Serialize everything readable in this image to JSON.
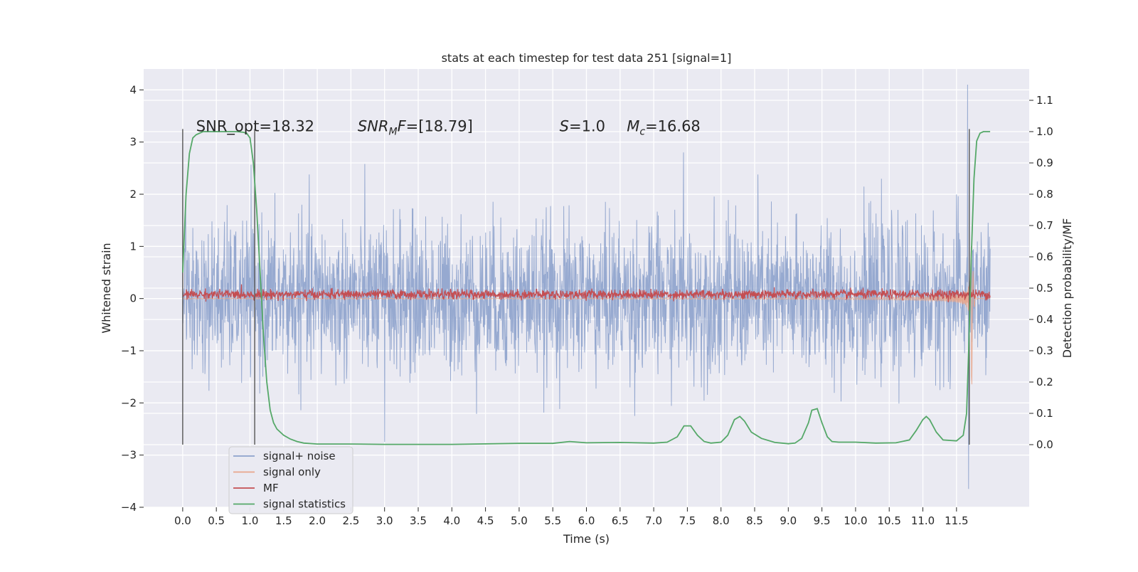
{
  "chart_data": {
    "type": "line",
    "title": "stats at each timestep for test data 251 [signal=1]",
    "xlabel": "Time (s)",
    "ylabel": "Whitened strain",
    "ylabel_right": "Detection probability/MF",
    "xlim": [
      -0.58,
      12.58
    ],
    "ylim": [
      -4.0,
      4.4
    ],
    "ylim_right": [
      -0.2,
      1.2
    ],
    "x_ticks": [
      0.0,
      0.5,
      1.0,
      1.5,
      2.0,
      2.5,
      3.0,
      3.5,
      4.0,
      4.5,
      5.0,
      5.5,
      6.0,
      6.5,
      7.0,
      7.5,
      8.0,
      8.5,
      9.0,
      9.5,
      10.0,
      10.5,
      11.0,
      11.5
    ],
    "x_tick_labels": [
      "0.0",
      "0.5",
      "1.0",
      "1.5",
      "2.0",
      "2.5",
      "3.0",
      "3.5",
      "4.0",
      "4.5",
      "5.0",
      "5.5",
      "6.0",
      "6.5",
      "7.0",
      "7.5",
      "8.0",
      "8.5",
      "9.0",
      "9.5",
      "10.0",
      "10.5",
      "11.0",
      "11.5"
    ],
    "y_ticks": [
      -4,
      -3,
      -2,
      -1,
      0,
      1,
      2,
      3,
      4
    ],
    "y_tick_labels": [
      "−4",
      "−3",
      "−2",
      "−1",
      "0",
      "1",
      "2",
      "3",
      "4"
    ],
    "y_right_ticks": [
      0.0,
      0.1,
      0.2,
      0.3,
      0.4,
      0.5,
      0.6,
      0.7,
      0.8,
      0.9,
      1.0,
      1.1
    ],
    "y_right_tick_labels": [
      "0.0",
      "0.1",
      "0.2",
      "0.3",
      "0.4",
      "0.5",
      "0.6",
      "0.7",
      "0.8",
      "0.9",
      "1.0",
      "1.1"
    ],
    "grid": true,
    "legend_position": "lower-left",
    "background_color": "#eaeaf2",
    "annotations": [
      {
        "text": "SNR_opt=18.32",
        "x": 0.2,
        "y": 3.3
      },
      {
        "text": "SNR_MF=[18.79]",
        "x": 2.6,
        "y": 3.3
      },
      {
        "text": "S=1.0",
        "x": 5.6,
        "y": 3.3
      },
      {
        "text": "M_c=16.68",
        "x": 6.6,
        "y": 3.3
      }
    ],
    "vertical_lines": [
      {
        "x": 0.0,
        "y_range": [
          -2.8,
          3.25
        ],
        "color": "#555555"
      },
      {
        "x": 1.07,
        "y_range": [
          -2.8,
          3.25
        ],
        "color": "#555555"
      },
      {
        "x": 11.69,
        "y_range": [
          -2.8,
          3.25
        ],
        "color": "#555555"
      }
    ],
    "series": [
      {
        "name": "signal+ noise",
        "color": "#8da2cc",
        "axis": "left",
        "style": "noise",
        "x_range": [
          0.0,
          12.0
        ],
        "approx_band": [
          -1.4,
          1.4
        ],
        "max_spike": 4.1,
        "min_spike": -3.65
      },
      {
        "name": "signal only",
        "color": "#e8a58a",
        "axis": "left",
        "style": "chirp",
        "x_range": [
          0.0,
          12.0
        ],
        "peak_time": 11.7,
        "peak_amplitude": 2.6
      },
      {
        "name": "MF",
        "color": "#c44e52",
        "axis": "left",
        "style": "mf_noise",
        "x_range": [
          0.0,
          12.0
        ],
        "center": 0.08,
        "amplitude": 0.1
      },
      {
        "name": "signal statistics",
        "color": "#55a868",
        "axis": "right",
        "style": "line",
        "x": [
          0.0,
          0.05,
          0.1,
          0.15,
          0.2,
          0.3,
          0.5,
          0.8,
          0.9,
          0.95,
          1.0,
          1.05,
          1.1,
          1.15,
          1.2,
          1.25,
          1.3,
          1.35,
          1.4,
          1.5,
          1.6,
          1.7,
          1.8,
          2.0,
          2.5,
          3.0,
          4.0,
          5.0,
          5.5,
          5.75,
          6.0,
          6.5,
          7.0,
          7.2,
          7.35,
          7.45,
          7.55,
          7.65,
          7.75,
          7.85,
          8.0,
          8.1,
          8.2,
          8.28,
          8.35,
          8.45,
          8.6,
          8.8,
          9.0,
          9.1,
          9.2,
          9.3,
          9.35,
          9.43,
          9.5,
          9.58,
          9.65,
          9.75,
          10.0,
          10.3,
          10.6,
          10.8,
          10.9,
          11.0,
          11.05,
          11.1,
          11.2,
          11.3,
          11.5,
          11.6,
          11.65,
          11.68,
          11.72,
          11.76,
          11.8,
          11.85,
          11.9,
          11.95,
          12.0
        ],
        "values": [
          0.55,
          0.8,
          0.93,
          0.98,
          0.99,
          1.0,
          1.0,
          1.0,
          0.998,
          0.995,
          0.98,
          0.9,
          0.75,
          0.55,
          0.35,
          0.2,
          0.11,
          0.07,
          0.05,
          0.03,
          0.018,
          0.01,
          0.005,
          0.002,
          0.002,
          0.001,
          0.001,
          0.004,
          0.004,
          0.01,
          0.006,
          0.007,
          0.005,
          0.008,
          0.025,
          0.06,
          0.06,
          0.03,
          0.01,
          0.005,
          0.008,
          0.03,
          0.08,
          0.09,
          0.075,
          0.04,
          0.02,
          0.007,
          0.003,
          0.005,
          0.02,
          0.07,
          0.11,
          0.115,
          0.07,
          0.025,
          0.01,
          0.008,
          0.008,
          0.005,
          0.006,
          0.015,
          0.045,
          0.08,
          0.09,
          0.08,
          0.04,
          0.015,
          0.012,
          0.03,
          0.1,
          0.3,
          0.6,
          0.85,
          0.97,
          0.995,
          1.0,
          1.0,
          1.0
        ]
      }
    ]
  }
}
